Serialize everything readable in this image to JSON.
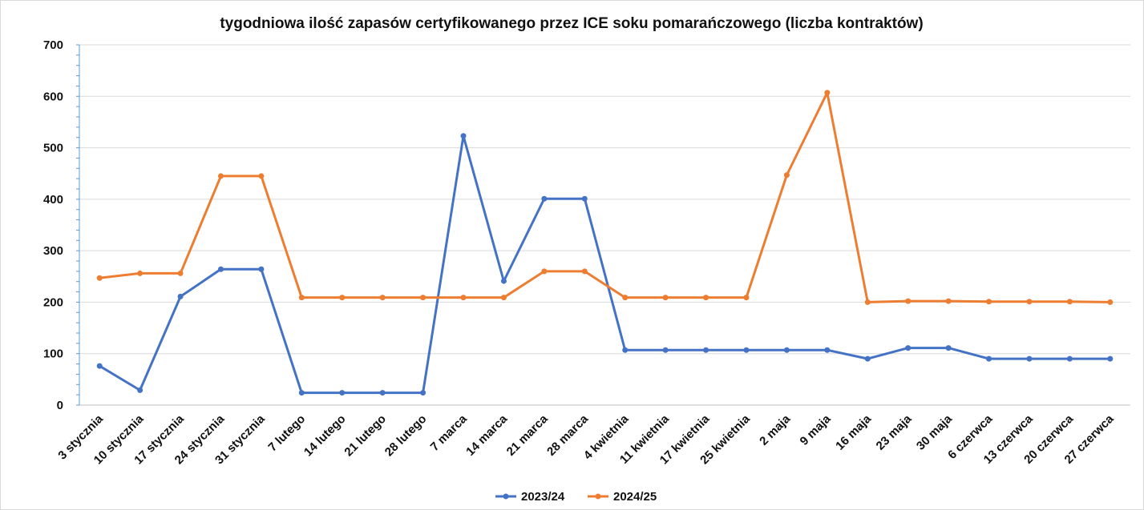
{
  "chart_data": {
    "type": "line",
    "title": "tygodniowa ilość zapasów certyfikowanego przez ICE soku pomarańczowego (liczba kontraktów)",
    "xlabel": "",
    "ylabel": "",
    "ylim": [
      0,
      700
    ],
    "yticks": [
      "0",
      "100",
      "200",
      "300",
      "400",
      "500",
      "600",
      "700"
    ],
    "grid": true,
    "legend": "bottom",
    "categories": [
      "3 stycznia",
      "10 stycznia",
      "17 stycznia",
      "24 stycznia",
      "31 stycznia",
      "7 lutego",
      "14 lutego",
      "21 lutego",
      "28 lutego",
      "7 marca",
      "14 marca",
      "21 marca",
      "28 marca",
      "4 kwietnia",
      "11 kwietnia",
      "17 kwietnia",
      "25 kwietnia",
      "2 maja",
      "9 maja",
      "16 maja",
      "23 maja",
      "30 maja",
      "6 czerwca",
      "13 czerwca",
      "20 czerwca",
      "27 czerwca"
    ],
    "series": [
      {
        "name": "2023/24",
        "color": "#4472c4",
        "values": [
          76,
          29,
          211,
          264,
          264,
          24,
          24,
          24,
          24,
          523,
          241,
          401,
          401,
          107,
          107,
          107,
          107,
          107,
          107,
          90,
          111,
          111,
          90,
          90,
          90,
          90
        ]
      },
      {
        "name": "2024/25",
        "color": "#ed7d31",
        "values": [
          247,
          256,
          256,
          445,
          445,
          209,
          209,
          209,
          209,
          209,
          209,
          260,
          260,
          209,
          209,
          209,
          209,
          447,
          607,
          200,
          202,
          202,
          201,
          201,
          201,
          200
        ]
      }
    ]
  }
}
